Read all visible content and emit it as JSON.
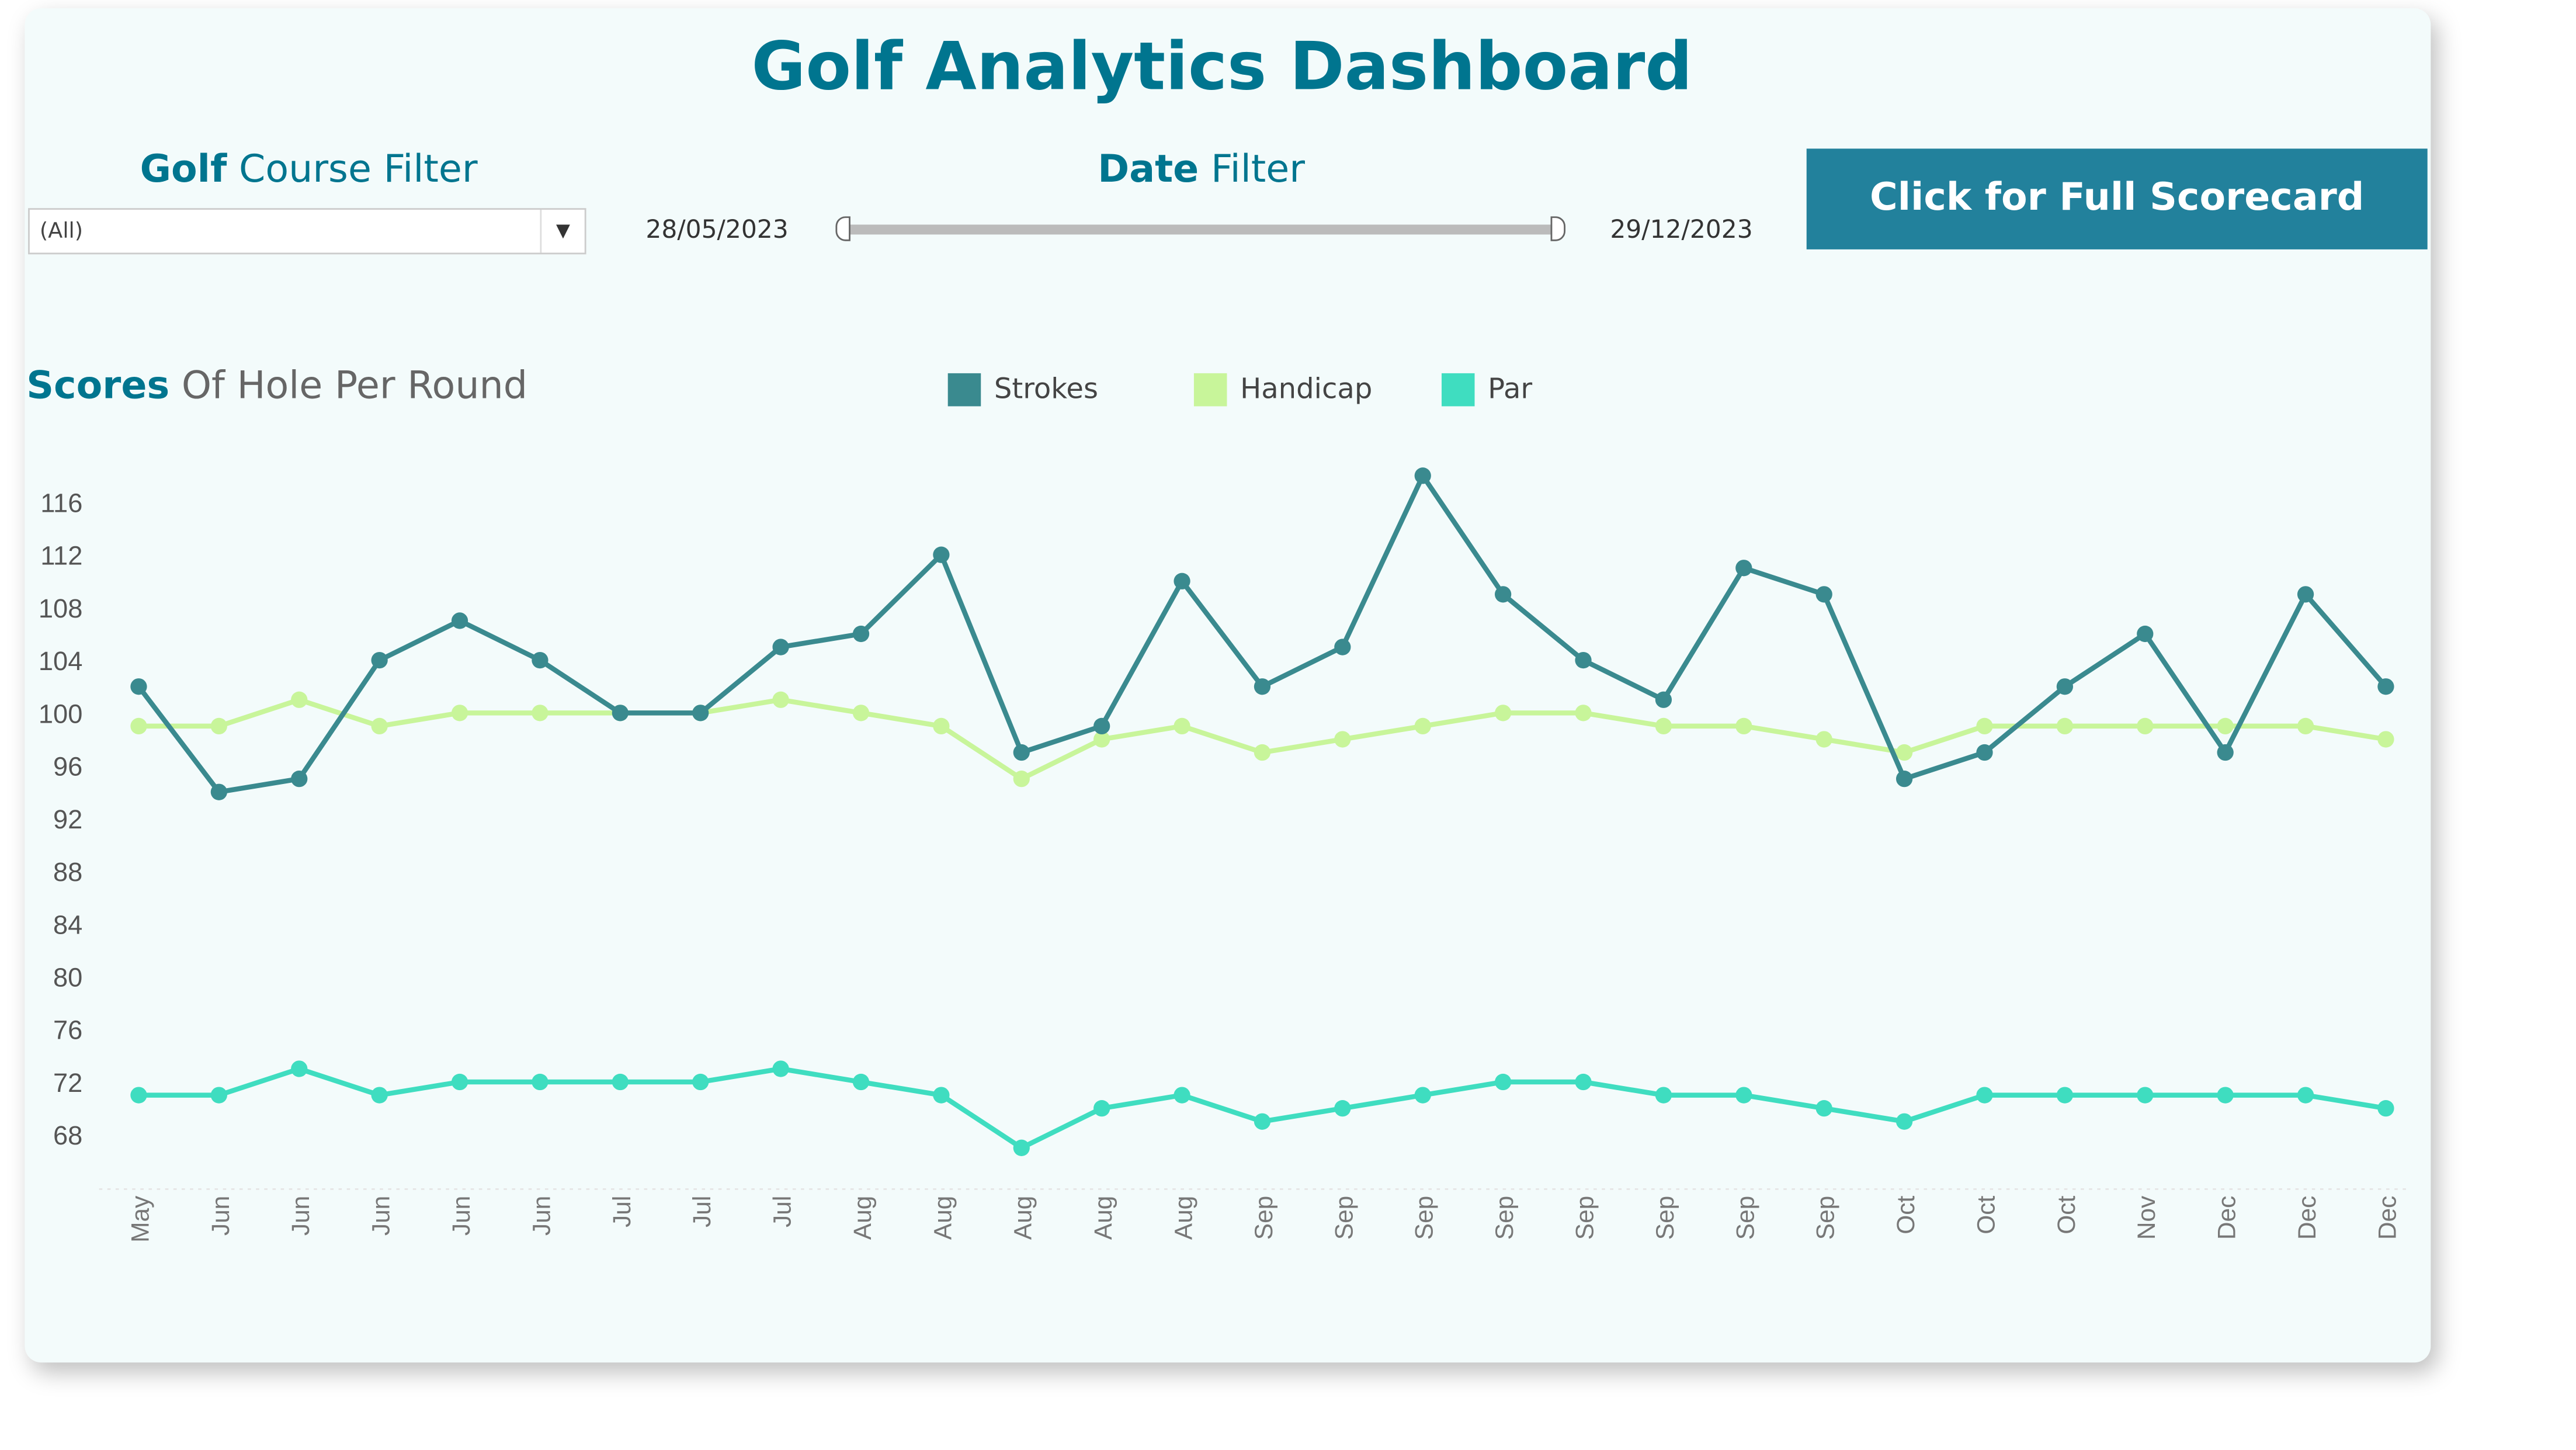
{
  "header": {
    "title": "Golf Analytics Dashboard"
  },
  "filters": {
    "course": {
      "label_bold": "Golf",
      "label_rest": " Course Filter",
      "value": "(All)"
    },
    "date": {
      "label_bold": "Date",
      "label_rest": " Filter",
      "start": "28/05/2023",
      "end": "29/12/2023"
    }
  },
  "button": {
    "label": "Click for Full Scorecard"
  },
  "chart_title": {
    "bold": "Scores",
    "rest": " Of Hole Per Round"
  },
  "colors": {
    "strokes": "#3a8a8f",
    "handicap": "#c8f59a",
    "par": "#3fddc0"
  },
  "chart_data": {
    "type": "line",
    "title": "Scores Of Hole Per Round",
    "xlabel": "",
    "ylabel": "",
    "ylim": [
      64,
      119
    ],
    "yticks": [
      68,
      72,
      76,
      80,
      84,
      88,
      92,
      96,
      100,
      104,
      108,
      112,
      116
    ],
    "legend_position": "top",
    "categories": [
      "May",
      "Jun",
      "Jun",
      "Jun",
      "Jun",
      "Jun",
      "Jul",
      "Jul",
      "Jul",
      "Aug",
      "Aug",
      "Aug",
      "Aug",
      "Aug",
      "Sep",
      "Sep",
      "Sep",
      "Sep",
      "Sep",
      "Sep",
      "Sep",
      "Sep",
      "Oct",
      "Oct",
      "Oct",
      "Nov",
      "Dec",
      "Dec",
      "Dec"
    ],
    "series": [
      {
        "name": "Strokes",
        "values": [
          102,
          94,
          95,
          104,
          107,
          104,
          100,
          100,
          105,
          106,
          112,
          97,
          99,
          110,
          102,
          105,
          118,
          109,
          104,
          101,
          111,
          109,
          95,
          97,
          102,
          106,
          97,
          109,
          102
        ]
      },
      {
        "name": "Handicap",
        "values": [
          99,
          99,
          101,
          99,
          100,
          100,
          100,
          100,
          101,
          100,
          99,
          95,
          98,
          99,
          97,
          98,
          99,
          100,
          100,
          99,
          99,
          98,
          97,
          99,
          99,
          99,
          99,
          99,
          98
        ]
      },
      {
        "name": "Par",
        "values": [
          71,
          71,
          73,
          71,
          72,
          72,
          72,
          72,
          73,
          72,
          71,
          67,
          70,
          71,
          69,
          70,
          71,
          72,
          72,
          71,
          71,
          70,
          69,
          71,
          71,
          71,
          71,
          71,
          70
        ]
      }
    ]
  }
}
